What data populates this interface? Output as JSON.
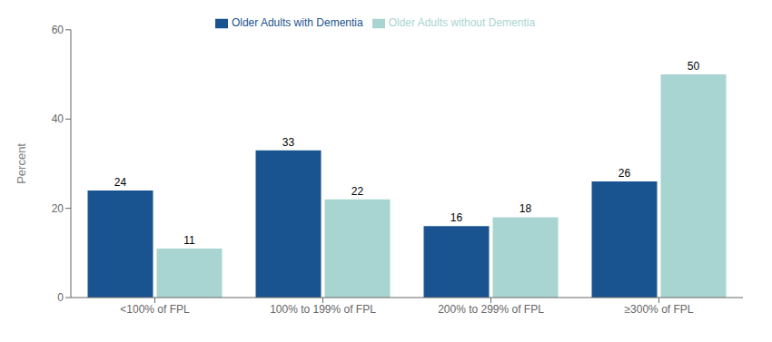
{
  "chart_data": {
    "type": "bar",
    "categories": [
      "<100% of FPL",
      "100% to 199% of FPL",
      "200% to 299% of FPL",
      "≥300% of FPL"
    ],
    "series": [
      {
        "name": "Older Adults with Dementia",
        "color": "#1a5490",
        "values": [
          24,
          33,
          16,
          26
        ]
      },
      {
        "name": "Older Adults without Dementia",
        "color": "#a8d5d1",
        "values": [
          11,
          22,
          18,
          50
        ]
      }
    ],
    "ylabel": "Percent",
    "ylim": [
      0,
      60
    ],
    "yticks": [
      0,
      20,
      40,
      60
    ],
    "grid": false,
    "legend": "top",
    "data_labels": true
  }
}
